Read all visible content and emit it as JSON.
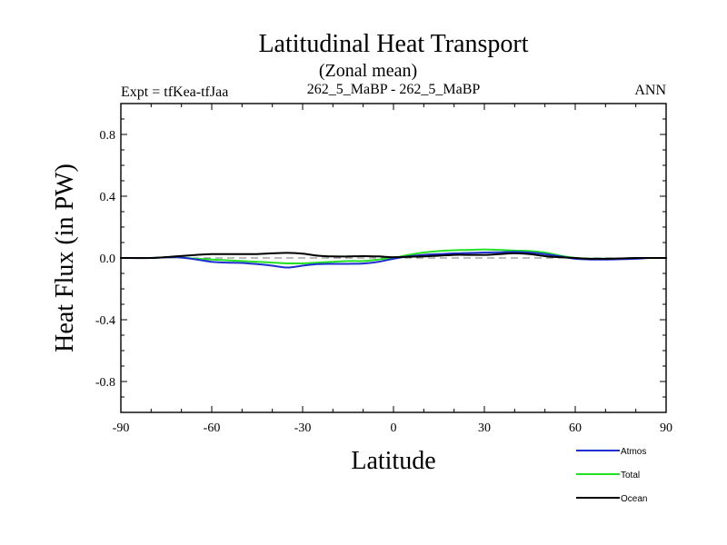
{
  "chart_data": {
    "type": "line",
    "title": "Latitudinal Heat Transport",
    "subtitle": "(Zonal mean)",
    "left_label": "Expt = tfKea-tfJaa",
    "center_label": "262_5_MaBP - 262_5_MaBP",
    "right_label": "ANN",
    "xlabel": "Latitude",
    "ylabel": "Heat Flux (in PW)",
    "xlim": [
      -90,
      90
    ],
    "ylim": [
      -1.0,
      1.0
    ],
    "x_ticks": [
      -90,
      -60,
      -30,
      0,
      30,
      60,
      90
    ],
    "x_tick_labels": [
      "-90",
      "-60",
      "-30",
      "0",
      "30",
      "60",
      "90"
    ],
    "y_ticks": [
      -0.8,
      -0.4,
      0.0,
      0.4,
      0.8
    ],
    "y_tick_labels": [
      "-0.8",
      "-0.4",
      "0.0",
      "0.4",
      "0.8"
    ],
    "zero_line": {
      "y": 0,
      "style": "dashed",
      "color": "#777777"
    },
    "legend_placement": "bottom-right",
    "x": [
      -90,
      -80,
      -72,
      -65,
      -60,
      -55,
      -50,
      -45,
      -40,
      -35,
      -30,
      -25,
      -20,
      -15,
      -10,
      -5,
      0,
      5,
      10,
      15,
      20,
      25,
      30,
      35,
      40,
      45,
      50,
      55,
      60,
      65,
      70,
      75,
      80,
      85,
      90
    ],
    "series": [
      {
        "name": "Atmos",
        "color": "#1f2fcf",
        "values": [
          0.0,
          0.0,
          0.005,
          -0.01,
          -0.025,
          -0.03,
          -0.032,
          -0.04,
          -0.05,
          -0.062,
          -0.05,
          -0.04,
          -0.038,
          -0.038,
          -0.036,
          -0.025,
          -0.005,
          0.01,
          0.02,
          0.025,
          0.03,
          0.032,
          0.035,
          0.037,
          0.04,
          0.035,
          0.025,
          0.01,
          -0.005,
          -0.01,
          -0.01,
          -0.008,
          -0.005,
          0.0,
          0.0
        ]
      },
      {
        "name": "Total",
        "color": "#22e022",
        "values": [
          0.0,
          0.0,
          0.005,
          -0.005,
          -0.01,
          -0.015,
          -0.02,
          -0.025,
          -0.03,
          -0.035,
          -0.035,
          -0.03,
          -0.025,
          -0.02,
          -0.02,
          -0.01,
          0.0,
          0.02,
          0.035,
          0.045,
          0.05,
          0.052,
          0.055,
          0.052,
          0.048,
          0.045,
          0.035,
          0.015,
          0.0,
          -0.005,
          -0.005,
          -0.005,
          0.0,
          0.0,
          0.0
        ]
      },
      {
        "name": "Ocean",
        "color": "#000000",
        "values": [
          0.0,
          0.0,
          0.01,
          0.02,
          0.025,
          0.025,
          0.025,
          0.025,
          0.03,
          0.033,
          0.028,
          0.015,
          0.01,
          0.01,
          0.012,
          0.01,
          0.005,
          0.008,
          0.01,
          0.015,
          0.02,
          0.02,
          0.02,
          0.025,
          0.03,
          0.025,
          0.012,
          0.005,
          0.0,
          -0.005,
          -0.005,
          -0.003,
          0.0,
          0.0,
          0.0
        ]
      }
    ]
  }
}
